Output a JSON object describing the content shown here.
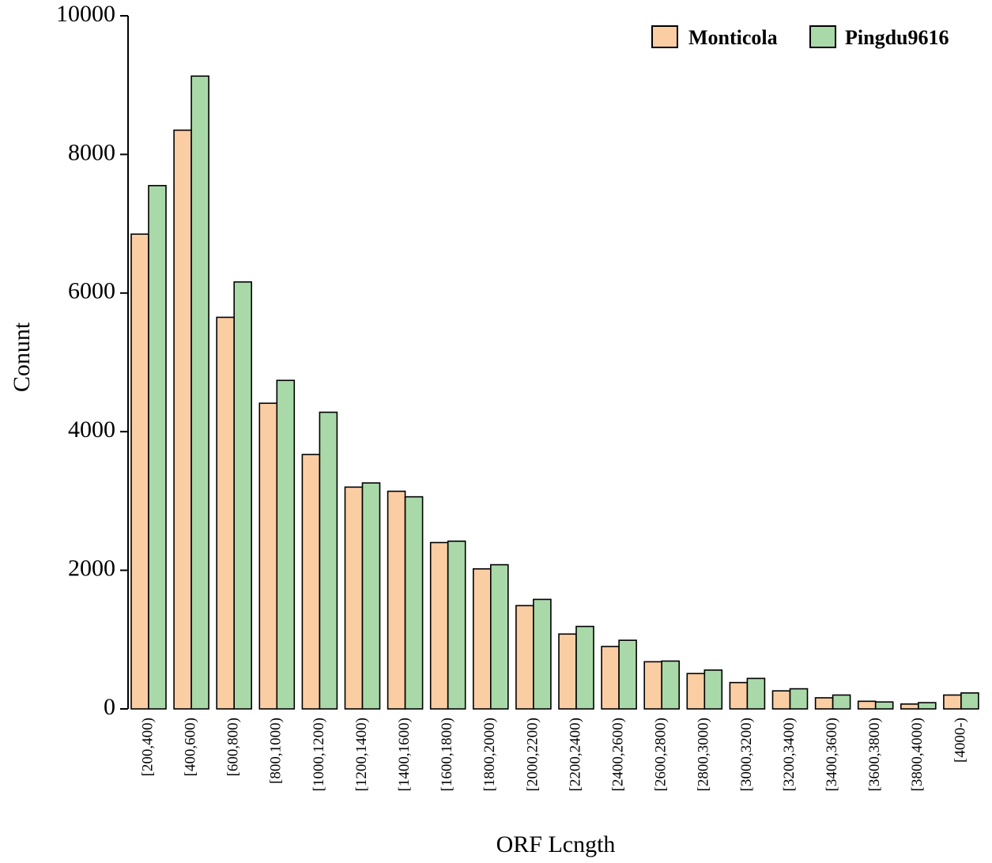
{
  "chart_data": {
    "type": "bar",
    "title": "",
    "xlabel": "ORF Lcngth",
    "ylabel": "Conunt",
    "ylim": [
      0,
      10000
    ],
    "yticks": [
      "0",
      "2000",
      "4000",
      "6000",
      "8000",
      "10000"
    ],
    "grid": false,
    "legend_position": "top-right",
    "categories": [
      "[200,400)",
      "[400,600)",
      "[600,800)",
      "[800,1000)",
      "[1000,1200)",
      "[1200,1400)",
      "[1400,1600)",
      "[1600,1800)",
      "[1800,2000)",
      "[2000,2200)",
      "[2200,2400)",
      "[2400,2600)",
      "[2600,2800)",
      "[2800,3000)",
      "[3000,3200)",
      "[3200,3400)",
      "[3400,3600)",
      "[3600,3800)",
      "[3800,4000)",
      "[4000-)"
    ],
    "series": [
      {
        "name": "Monticola",
        "color": "#fbcda3",
        "values": [
          6850,
          8350,
          5650,
          4410,
          3670,
          3200,
          3140,
          2400,
          2020,
          1490,
          1080,
          900,
          680,
          510,
          380,
          260,
          160,
          110,
          70,
          200
        ]
      },
      {
        "name": "Pingdu9616",
        "color": "#a9d9a9",
        "values": [
          7550,
          9130,
          6160,
          4740,
          4280,
          3260,
          3060,
          2420,
          2080,
          1580,
          1190,
          990,
          690,
          560,
          440,
          290,
          200,
          100,
          90,
          230
        ]
      }
    ]
  }
}
